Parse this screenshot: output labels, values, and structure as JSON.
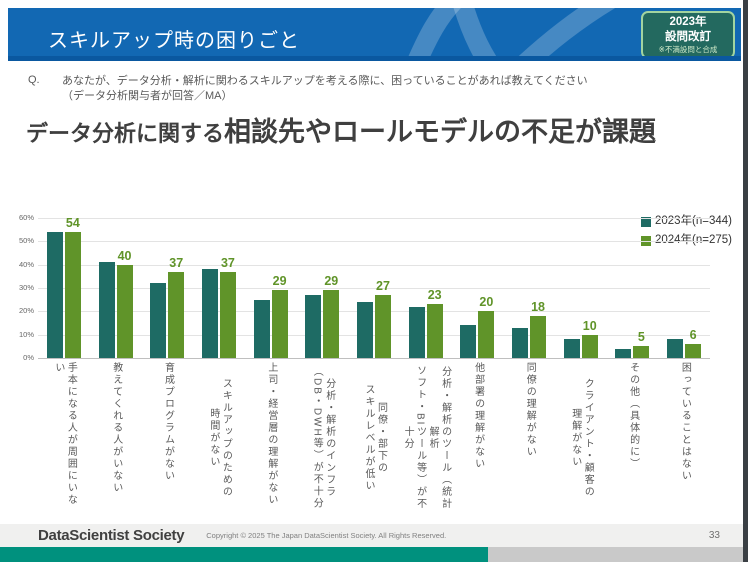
{
  "header": {
    "title": "スキルアップ時の困りごと",
    "badge": {
      "line1": "2023年",
      "line2": "設問改訂",
      "line3": "※不満設問と合成"
    }
  },
  "question": {
    "label": "Q.",
    "line1": "あなたが、データ分析・解析に関わるスキルアップを考える際に、困っていることがあれば教えてください",
    "line2": "（データ分析関与者が回答／MA）"
  },
  "title": {
    "part1": "データ分析に関する",
    "part2": "相談先やロールモデルの不足が課題"
  },
  "chart_data": {
    "type": "bar",
    "title": "",
    "xlabel": "",
    "ylabel": "",
    "ylim": [
      0,
      60
    ],
    "ytick_labels": [
      "0%",
      "10%",
      "20%",
      "30%",
      "40%",
      "50%",
      "60%"
    ],
    "grid": true,
    "legend_position": "top-right",
    "categories": [
      "手本になる人が周囲にいない",
      "教えてくれる人がいない",
      "育成プログラムがない",
      "スキルアップのための\n時間がない",
      "上司・経営層の理解がない",
      "分析・解析のインフラ\n（DB・DWH等）が不十分",
      "同僚・部下の\nスキルレベルが低い",
      "分析・解析のツール（統計解析\nソフト・BIツール等）が不十分",
      "他部署の理解がない",
      "同僚の理解がない",
      "クライアント・顧客の\n理解がない",
      "その他（具体的に）",
      "困っていることはない"
    ],
    "series": [
      {
        "name": "2023年(n=344)",
        "color": "#1e6b64",
        "values": [
          54,
          41,
          32,
          38,
          25,
          27,
          24,
          22,
          14,
          13,
          8,
          4,
          8
        ]
      },
      {
        "name": "2024年(n=275)",
        "color": "#609429",
        "values": [
          54,
          40,
          37,
          37,
          29,
          29,
          27,
          23,
          20,
          18,
          10,
          5,
          6
        ],
        "data_labels_shown": true
      }
    ]
  },
  "footer": {
    "logo": "DataScientist Society",
    "copyright": "Copyright © 2025 The Japan DataScientist Society. All Rights Reserved.",
    "page": "33"
  },
  "colors": {
    "header_bg": "#1268b3",
    "header_strip": "#0a58a0",
    "badge_bg": "#23695f",
    "badge_border": "#a2d4a0",
    "bar_2023": "#1e6b64",
    "bar_2024": "#609429",
    "value_label": "#609429",
    "bottom_bar_teal": "#00917e",
    "bottom_bar_gray": "#c9c9c9"
  }
}
